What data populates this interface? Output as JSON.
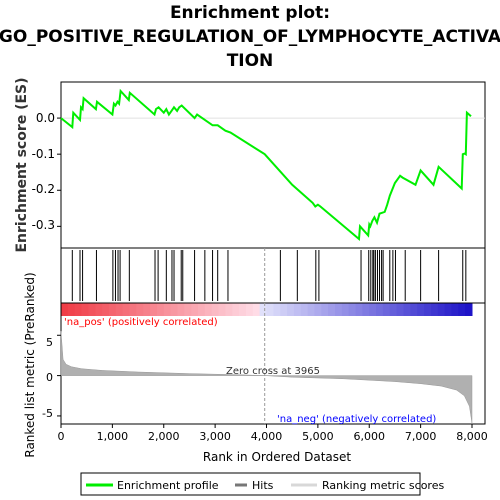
{
  "title_lines": [
    "Enrichment plot:",
    "GO_POSITIVE_REGULATION_OF_LYMPHOCYTE_ACTIVA",
    "TION"
  ],
  "es_panel": {
    "ylabel": "Enrichment score (ES)",
    "yticks": [
      "0.0",
      "-0.1",
      "-0.2",
      "-0.3"
    ]
  },
  "rank_panel": {
    "ylabel": "Ranked list metric (PreRanked)",
    "yticks": [
      "5",
      "0",
      "-5"
    ],
    "xlabel": "Rank in Ordered Dataset",
    "xticks": [
      "0",
      "1,000",
      "2,000",
      "3,000",
      "4,000",
      "5,000",
      "6,000",
      "7,000",
      "8,000"
    ],
    "pos_label": "'na_pos' (positively correlated)",
    "neg_label": "'na_neg' (negatively correlated)",
    "zero_cross": "Zero cross at 3965"
  },
  "legend": {
    "items": [
      "Enrichment profile",
      "Hits",
      "Ranking metric scores"
    ]
  },
  "colors": {
    "enrichment": "#00ee00",
    "hits": "#000000",
    "metric": "#b0b0b0",
    "pos_text": "#ff0000",
    "neg_text": "#0000ff"
  },
  "chart_data": {
    "type": "line",
    "x_range": [
      0,
      8000
    ],
    "es_ylim": [
      -0.36,
      0.1
    ],
    "metric_ylim": [
      -6,
      9
    ],
    "zero_cross": 3965,
    "enrichment_profile": {
      "x": [
        0,
        220,
        240,
        370,
        390,
        420,
        440,
        680,
        700,
        1000,
        1030,
        1060,
        1100,
        1130,
        1160,
        1320,
        1340,
        1820,
        1850,
        1900,
        2000,
        2050,
        2100,
        2150,
        2200,
        2260,
        2300,
        2350,
        2600,
        2650,
        2950,
        3050,
        3200,
        3300,
        3965,
        4500,
        4900,
        4950,
        5000,
        5050,
        5800,
        5820,
        5980,
        6000,
        6020,
        6060,
        6100,
        6150,
        6200,
        6300,
        6350,
        6400,
        6500,
        6600,
        6650,
        6900,
        7000,
        7250,
        7350,
        7800,
        7820,
        7860,
        7880,
        7900,
        7980
      ],
      "y": [
        0.0,
        -0.025,
        0.015,
        -0.005,
        0.03,
        0.025,
        0.055,
        0.025,
        0.045,
        0.01,
        0.04,
        0.035,
        0.045,
        0.04,
        0.075,
        0.05,
        0.07,
        0.01,
        0.025,
        0.03,
        0.015,
        0.025,
        0.01,
        0.02,
        0.03,
        0.02,
        0.03,
        0.035,
        0.0,
        0.01,
        -0.02,
        -0.02,
        -0.035,
        -0.04,
        -0.1,
        -0.185,
        -0.235,
        -0.245,
        -0.24,
        -0.245,
        -0.335,
        -0.3,
        -0.325,
        -0.295,
        -0.3,
        -0.285,
        -0.275,
        -0.29,
        -0.265,
        -0.26,
        -0.24,
        -0.215,
        -0.18,
        -0.16,
        -0.165,
        -0.185,
        -0.145,
        -0.185,
        -0.135,
        -0.195,
        -0.1,
        -0.098,
        -0.1,
        0.015,
        0.005
      ]
    },
    "hits": [
      220,
      370,
      420,
      690,
      1010,
      1060,
      1110,
      1150,
      1330,
      1830,
      1890,
      2050,
      2160,
      2200,
      2340,
      2370,
      2600,
      2800,
      2950,
      3050,
      3250,
      4270,
      4600,
      4960,
      5020,
      5840,
      5990,
      6030,
      6070,
      6090,
      6120,
      6160,
      6200,
      6240,
      6270,
      6400,
      6460,
      6510,
      6700,
      7000,
      7350,
      7820,
      7880
    ],
    "metric_profile": {
      "x": [
        0,
        40,
        100,
        200,
        400,
        800,
        1500,
        2500,
        3500,
        3965,
        4500,
        5500,
        6500,
        7000,
        7400,
        7700,
        7850,
        7950,
        7990,
        8000
      ],
      "y": [
        5.5,
        2.0,
        1.4,
        1.1,
        0.85,
        0.65,
        0.45,
        0.25,
        0.1,
        0.0,
        -0.2,
        -0.4,
        -0.75,
        -1.0,
        -1.3,
        -1.8,
        -2.5,
        -3.8,
        -5.5,
        -6.0
      ]
    }
  }
}
